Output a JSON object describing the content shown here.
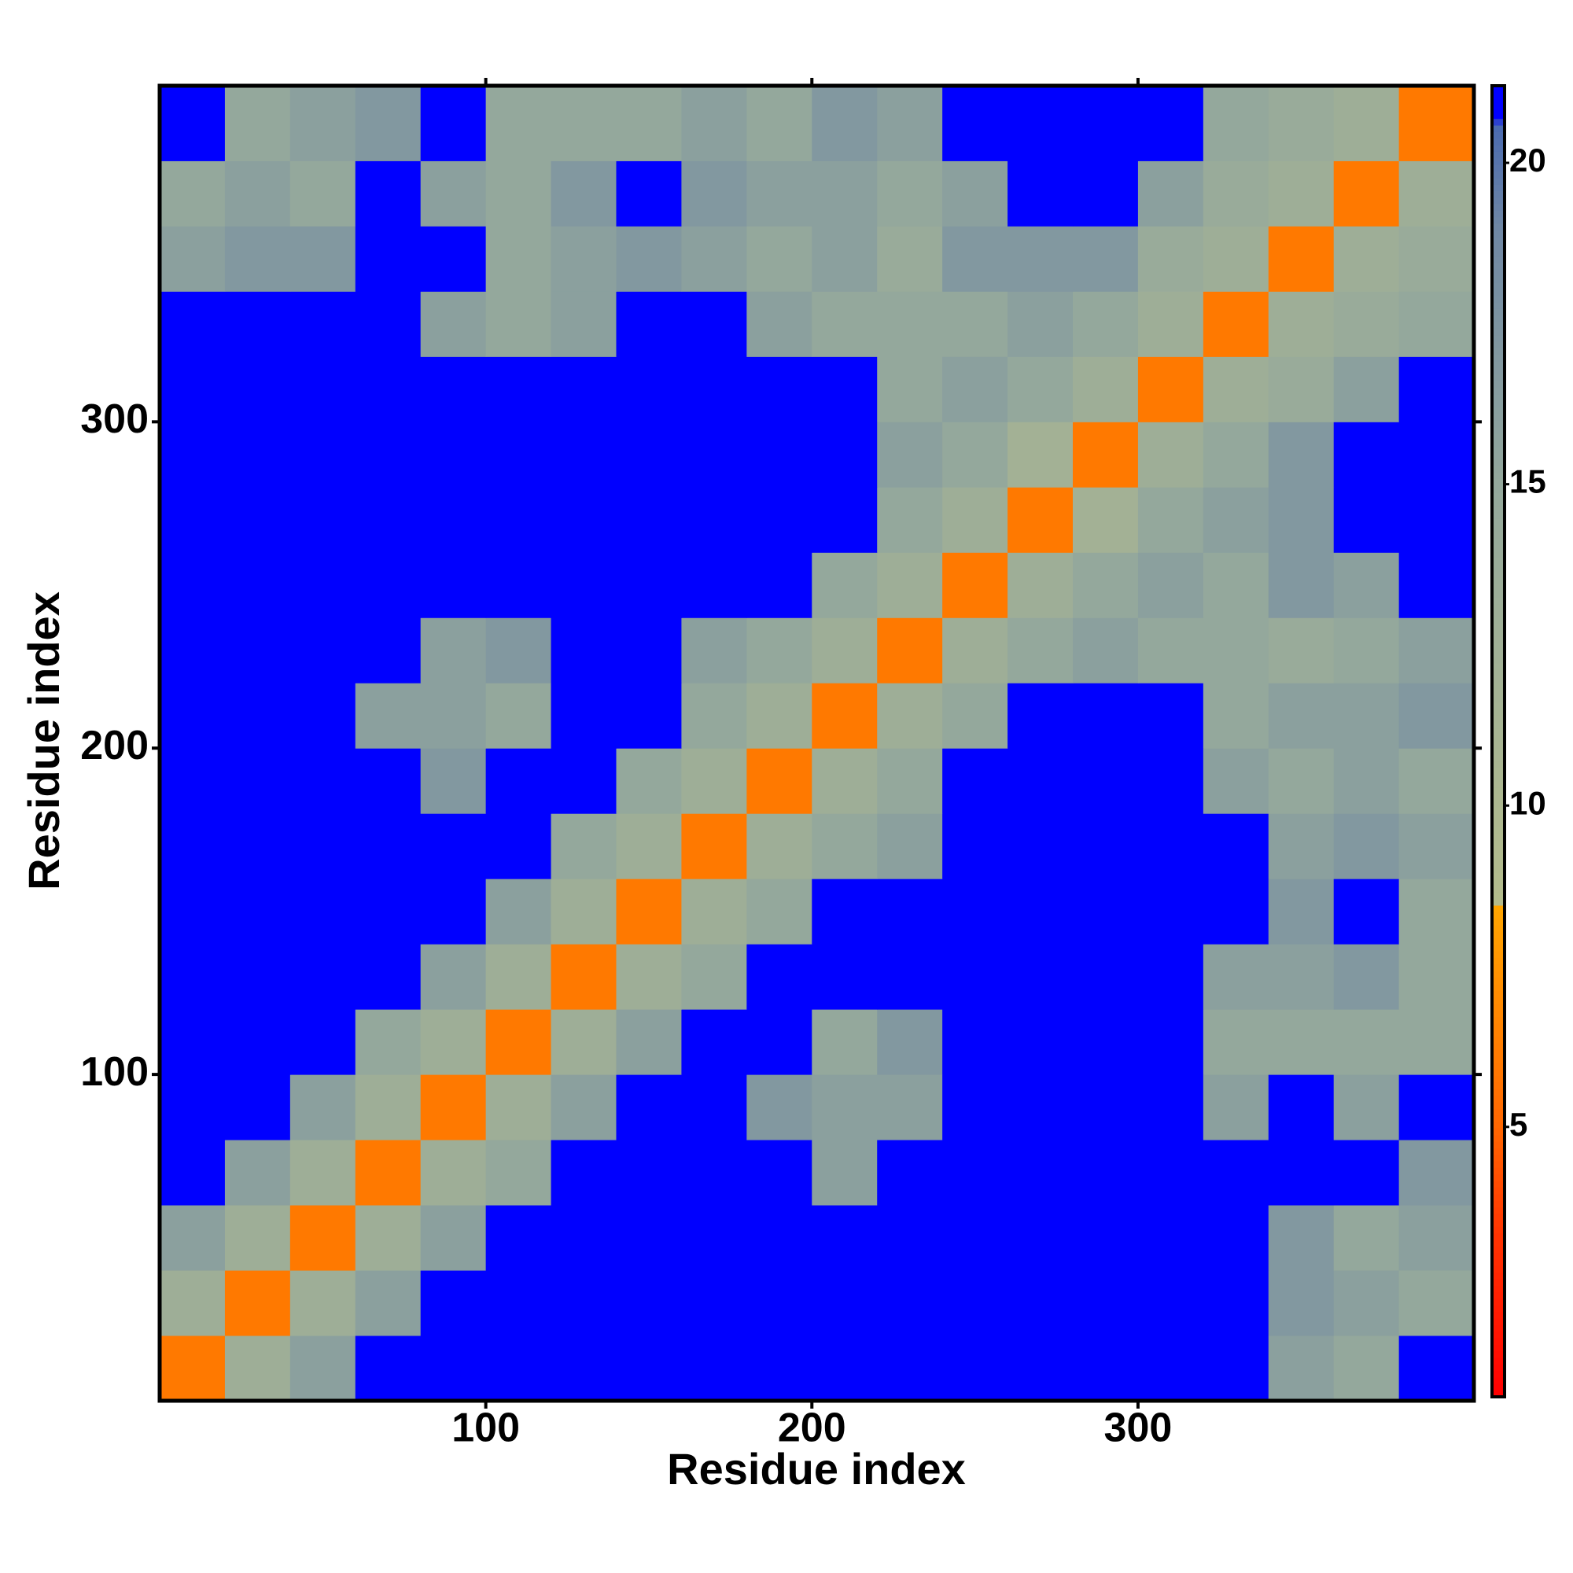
{
  "chart_data": {
    "type": "heatmap",
    "x_label": "Residue index",
    "y_label": "Residue index",
    "x_bins": [
      0,
      20,
      40,
      60,
      80,
      100,
      120,
      140,
      160,
      180,
      200,
      220,
      240,
      260,
      280,
      300,
      320,
      340,
      360,
      380,
      403
    ],
    "y_bins": [
      0,
      20,
      40,
      60,
      80,
      100,
      120,
      140,
      160,
      180,
      200,
      220,
      240,
      260,
      280,
      300,
      320,
      340,
      360,
      380,
      403
    ],
    "xlim": [
      0,
      403
    ],
    "ylim": [
      0,
      403
    ],
    "xticks": [
      100,
      200,
      300
    ],
    "yticks": [
      100,
      200,
      300
    ],
    "clim": [
      0.8,
      21.2
    ],
    "cticks": [
      5,
      10,
      15,
      20
    ],
    "colorscale": [
      [
        0.8,
        "#ff0000"
      ],
      [
        3.3,
        "#ff3300"
      ],
      [
        5,
        "#ff6600"
      ],
      [
        8.4,
        "#ffa500"
      ],
      [
        8.5,
        "#b4bc8c"
      ],
      [
        15,
        "#94a89c"
      ],
      [
        19,
        "#6f87a4"
      ],
      [
        20.6,
        "#4a6ab0"
      ],
      [
        20.7,
        "#0000ff"
      ],
      [
        21.2,
        "#0000ff"
      ]
    ],
    "z": [
      [
        6,
        13,
        16,
        21.2,
        21.2,
        21.2,
        21.2,
        21.2,
        21.2,
        21.2,
        21.2,
        21.2,
        21.2,
        21.2,
        21.2,
        21.2,
        21.2,
        16,
        15,
        21.2
      ],
      [
        13,
        6,
        13,
        16,
        21.2,
        21.2,
        21.2,
        21.2,
        21.2,
        21.2,
        21.2,
        21.2,
        21.2,
        21.2,
        21.2,
        21.2,
        21.2,
        17,
        16,
        15
      ],
      [
        16,
        13,
        6,
        13,
        16,
        21.2,
        21.2,
        21.2,
        21.2,
        21.2,
        21.2,
        21.2,
        21.2,
        21.2,
        21.2,
        21.2,
        21.2,
        17,
        15,
        16
      ],
      [
        21.2,
        16,
        13,
        6,
        13,
        15,
        21.2,
        21.2,
        21.2,
        21.2,
        16,
        21.2,
        21.2,
        21.2,
        21.2,
        21.2,
        21.2,
        21.2,
        21.2,
        17
      ],
      [
        21.2,
        21.2,
        16,
        13,
        6,
        13,
        16,
        21.2,
        21.2,
        17,
        16,
        16,
        21.2,
        21.2,
        21.2,
        21.2,
        16,
        21.2,
        16,
        21.2
      ],
      [
        21.2,
        21.2,
        21.2,
        15,
        13,
        6,
        13,
        16,
        21.2,
        21.2,
        15,
        17,
        21.2,
        21.2,
        21.2,
        21.2,
        15,
        15,
        15,
        15
      ],
      [
        21.2,
        21.2,
        21.2,
        21.2,
        16,
        13,
        6,
        13,
        15,
        21.2,
        21.2,
        21.2,
        21.2,
        21.2,
        21.2,
        21.2,
        16,
        16,
        17,
        15
      ],
      [
        21.2,
        21.2,
        21.2,
        21.2,
        21.2,
        16,
        13,
        6,
        13,
        15,
        21.2,
        21.2,
        21.2,
        21.2,
        21.2,
        21.2,
        21.2,
        17,
        21.2,
        15
      ],
      [
        21.2,
        21.2,
        21.2,
        21.2,
        21.2,
        21.2,
        15,
        13,
        6,
        13,
        15,
        16,
        21.2,
        21.2,
        21.2,
        21.2,
        21.2,
        16,
        17,
        16
      ],
      [
        21.2,
        21.2,
        21.2,
        21.2,
        17,
        21.2,
        21.2,
        15,
        13,
        6,
        13,
        15,
        21.2,
        21.2,
        21.2,
        21.2,
        16,
        15,
        16,
        15
      ],
      [
        21.2,
        21.2,
        21.2,
        16,
        16,
        15,
        21.2,
        21.2,
        15,
        13,
        6,
        13,
        15,
        21.2,
        21.2,
        21.2,
        15,
        16,
        16,
        17
      ],
      [
        21.2,
        21.2,
        21.2,
        21.2,
        16,
        17,
        21.2,
        21.2,
        16,
        15,
        13,
        6,
        13,
        15,
        16,
        15,
        15,
        14,
        15,
        16
      ],
      [
        21.2,
        21.2,
        21.2,
        21.2,
        21.2,
        21.2,
        21.2,
        21.2,
        21.2,
        21.2,
        15,
        13,
        6,
        13,
        15,
        16,
        15,
        17,
        16,
        21.2
      ],
      [
        21.2,
        21.2,
        21.2,
        21.2,
        21.2,
        21.2,
        21.2,
        21.2,
        21.2,
        21.2,
        21.2,
        15,
        13,
        6,
        12,
        15,
        16,
        17,
        21.2,
        21.2
      ],
      [
        21.2,
        21.2,
        21.2,
        21.2,
        21.2,
        21.2,
        21.2,
        21.2,
        21.2,
        21.2,
        21.2,
        16,
        15,
        12,
        6,
        13,
        15,
        17,
        21.2,
        21.2
      ],
      [
        21.2,
        21.2,
        21.2,
        21.2,
        21.2,
        21.2,
        21.2,
        21.2,
        21.2,
        21.2,
        21.2,
        15,
        16,
        15,
        13,
        6,
        13,
        14,
        16,
        21.2
      ],
      [
        21.2,
        21.2,
        21.2,
        21.2,
        16,
        15,
        16,
        21.2,
        21.2,
        16,
        15,
        15,
        15,
        16,
        15,
        13,
        6,
        13,
        14,
        15
      ],
      [
        16,
        17,
        17,
        21.2,
        21.2,
        15,
        16,
        17,
        16,
        15,
        16,
        14,
        17,
        17,
        17,
        14,
        13,
        6,
        13,
        14
      ],
      [
        15,
        16,
        15,
        21.2,
        16,
        15,
        17,
        21.2,
        17,
        16,
        16,
        15,
        16,
        21.2,
        21.2,
        16,
        14,
        13,
        6,
        13
      ],
      [
        21.2,
        15,
        16,
        17,
        21.2,
        15,
        15,
        15,
        16,
        15,
        17,
        16,
        21.2,
        21.2,
        21.2,
        21.2,
        15,
        14,
        13,
        6
      ]
    ]
  }
}
